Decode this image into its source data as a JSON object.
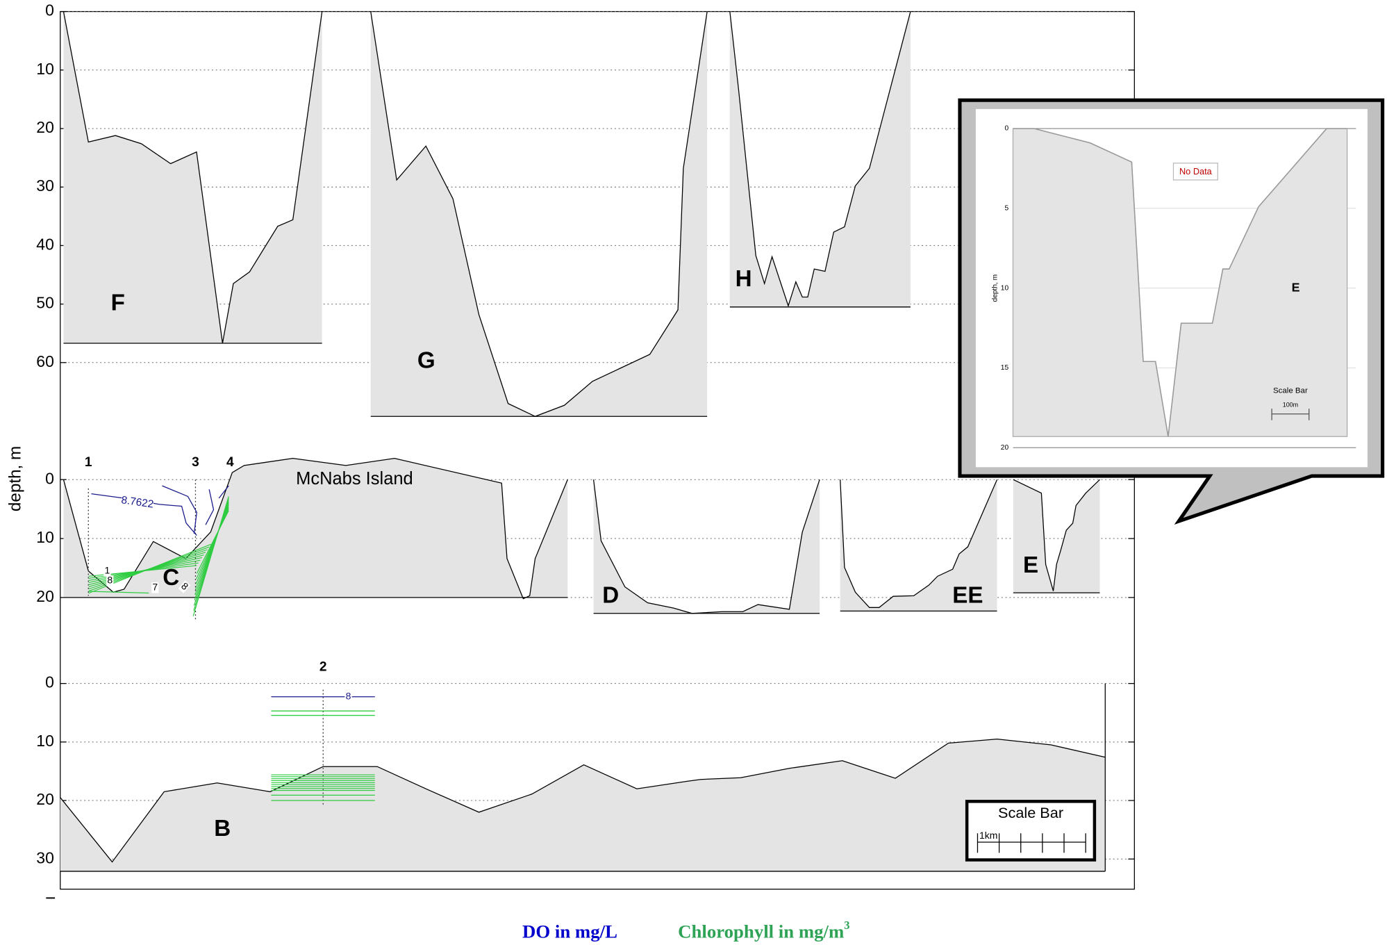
{
  "chart_data": {
    "type": "area",
    "ylabel": "depth, m",
    "xlim": [
      0,
      9.93
    ],
    "panels": [
      {
        "ylim": [
          0,
          60
        ],
        "yticks": [
          0,
          10,
          20,
          30,
          40,
          50,
          60
        ],
        "profiles": [
          {
            "name": "F",
            "x": [
              0.03,
              0.26,
              0.51,
              0.75,
              1.02,
              1.26,
              1.5,
              1.6,
              1.75,
              2.01,
              2.15,
              2.42
            ],
            "values": [
              0,
              22.3,
              21.2,
              22.6,
              26,
              24,
              56.7,
              46.5,
              44.5,
              36.7,
              35.6,
              0
            ],
            "base": 56.7
          },
          {
            "name": "G",
            "x": [
              2.87,
              3.11,
              3.38,
              3.63,
              3.87,
              4.14,
              4.39,
              4.66,
              4.92,
              5.45,
              5.71,
              5.76,
              5.98
            ],
            "values": [
              0,
              28.8,
              23,
              32,
              51.8,
              67,
              69.2,
              67.3,
              63.2,
              58.6,
              51,
              26.8,
              0
            ],
            "base": 69.2
          },
          {
            "name": "H",
            "x": [
              6.19,
              6.27,
              6.43,
              6.51,
              6.58,
              6.73,
              6.8,
              6.86,
              6.91,
              6.97,
              7.07,
              7.15,
              7.25,
              7.35,
              7.48,
              7.86
            ],
            "values": [
              0,
              13.2,
              41.7,
              46.5,
              41.9,
              50.3,
              46.2,
              48.8,
              48.8,
              44,
              44.4,
              37.7,
              36.8,
              29.8,
              26.8,
              0
            ],
            "base": 50.5
          }
        ]
      },
      {
        "ylim": [
          0,
          20
        ],
        "yticks": [
          0,
          10,
          20
        ],
        "profiles": [
          {
            "name": "C",
            "x": [
              0.03,
              0.26,
              0.49,
              0.59,
              0.86,
              1.16,
              1.39,
              1.59,
              1.7,
              2.15,
              2.64,
              3.09,
              4.08,
              4.13,
              4.28,
              4.34,
              4.39,
              4.69
            ],
            "values": [
              0,
              15.5,
              19.1,
              18.6,
              10.5,
              13.4,
              8.9,
              -1.2,
              -2.4,
              -3.6,
              -2.4,
              -3.6,
              0.6,
              13.4,
              20.2,
              19.7,
              13.4,
              0
            ],
            "base": 20
          },
          {
            "name": "D",
            "x": [
              4.93,
              5.0,
              5.22,
              5.43,
              5.67,
              5.84,
              6.12,
              6.31,
              6.45,
              6.74,
              6.86,
              7.02
            ],
            "values": [
              0,
              10.4,
              18.2,
              20.9,
              21.8,
              22.7,
              22.4,
              22.4,
              21.2,
              22,
              8.9,
              0
            ],
            "base": 22.7
          },
          {
            "name": "EE",
            "x": [
              7.21,
              7.25,
              7.35,
              7.48,
              7.57,
              7.7,
              7.89,
              8.03,
              8.11,
              8.25,
              8.31,
              8.39,
              8.66
            ],
            "values": [
              0,
              14.9,
              19.1,
              21.7,
              21.7,
              19.8,
              19.7,
              17.9,
              16.4,
              15.2,
              12.6,
              11.4,
              0
            ],
            "base": 22.3
          },
          {
            "name": "E",
            "x": [
              8.81,
              9.07,
              9.11,
              9.18,
              9.21,
              9.25,
              9.3,
              9.36,
              9.39,
              9.48,
              9.61
            ],
            "values": [
              0,
              2.3,
              14.4,
              18.9,
              14.4,
              11.9,
              8.6,
              7.4,
              4.4,
              2.3,
              0
            ],
            "base": 19.2
          }
        ]
      },
      {
        "ylim": [
          0,
          30
        ],
        "yticks": [
          0,
          10,
          20,
          30
        ],
        "profiles": [
          {
            "name": "B",
            "x": [
              0,
              0.48,
              0.96,
              1.45,
              1.94,
              2.43,
              2.93,
              3.38,
              3.87,
              4.36,
              4.84,
              5.33,
              5.8,
              5.92,
              6.29,
              6.74,
              7.23,
              7.72,
              8.21,
              8.66,
              9.16,
              9.66
            ],
            "values": [
              19.5,
              30.5,
              18.5,
              17,
              18.5,
              14.2,
              14.2,
              18,
              22,
              18.9,
              13.9,
              18,
              16.7,
              16.4,
              16.1,
              14.5,
              13.2,
              16.2,
              10.2,
              9.5,
              10.5,
              12.6
            ],
            "base": 32.1
          }
        ]
      }
    ],
    "island": "McNabs Island",
    "stations": [
      {
        "name": "1",
        "x": 0.26
      },
      {
        "name": "2",
        "x": 2.43
      },
      {
        "name": "3",
        "x": 1.25
      },
      {
        "name": "4",
        "x": 1.57
      }
    ],
    "contour_labels": [
      "8.7622",
      "1",
      "8",
      "7",
      "8",
      "8"
    ],
    "scale_bar": {
      "title": "Scale Bar",
      "label": "1km"
    },
    "legend": [
      {
        "name": "DO in mg/L",
        "color": "#0000cc"
      },
      {
        "name": "Chlorophyll in mg/m",
        "superscript": "3",
        "color": "#2ea356"
      }
    ]
  },
  "inset": {
    "type": "area",
    "ylabel": "depth, m",
    "ylim": [
      0,
      20
    ],
    "yticks": [
      0,
      5,
      10,
      15,
      20
    ],
    "xlim": [
      0,
      898
    ],
    "x": [
      0,
      57,
      207,
      319,
      350,
      383,
      417,
      452,
      536,
      564,
      581,
      660,
      843,
      898
    ],
    "values": [
      0,
      0,
      0.9,
      2.1,
      14.6,
      14.6,
      19.3,
      12.2,
      12.2,
      8.8,
      8.8,
      4.9,
      0,
      0
    ],
    "base": 19.3,
    "annotation": "No Data",
    "label": "E",
    "scale_bar": {
      "title": "Scale Bar",
      "label": "100m"
    }
  }
}
